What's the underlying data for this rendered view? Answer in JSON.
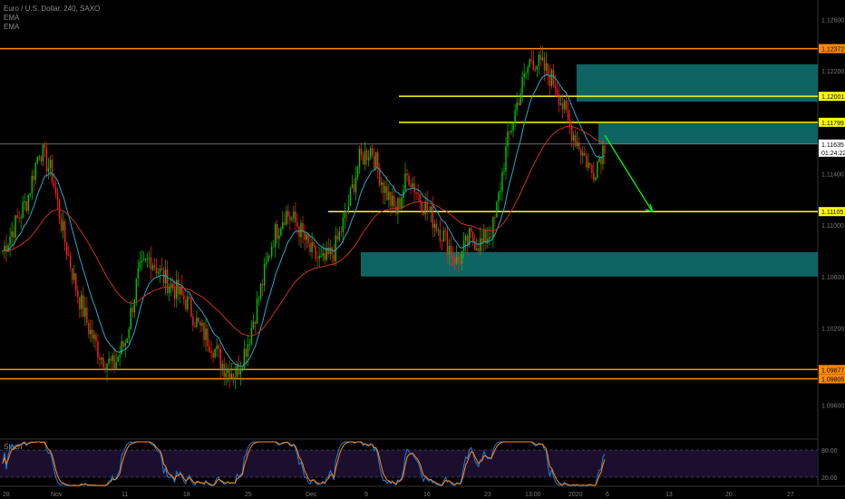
{
  "header": {
    "symbol_line": "Euro / U.S. Dollar, 240, SAXO",
    "indicator_1": "EMA",
    "indicator_2": "EMA"
  },
  "chart_data": {
    "type": "candlestick",
    "symbol": "Euro / U.S. Dollar",
    "interval": "240",
    "source": "SAXO",
    "y_range": [
      1.0935,
      1.1275
    ],
    "price_ticks": [
      "1.12600",
      "1.12200",
      "1.11800",
      "1.11400",
      "1.11000",
      "1.10600",
      "1.10200",
      "1.09800",
      "1.09600"
    ],
    "x_ticks": [
      "28",
      "Nov",
      "11",
      "18",
      "25",
      "Dec",
      "9",
      "16",
      "23",
      "13:00",
      "2020",
      "6",
      "13",
      "20",
      "27"
    ],
    "horizontal_levels": [
      {
        "price": 1.12372,
        "label": "1.12372",
        "color": "#ff8a00"
      },
      {
        "price": 1.12001,
        "label": "1.12001",
        "color": "#ffff00"
      },
      {
        "price": 1.11799,
        "label": "1.11799",
        "color": "#ffff00"
      },
      {
        "price": 1.11105,
        "label": "1.11105",
        "color": "#ffff00"
      },
      {
        "price": 1.09877,
        "label": "1.09877",
        "color": "#ff8a00"
      },
      {
        "price": 1.09805,
        "label": "1.09805",
        "color": "#ff8a00"
      }
    ],
    "current_price": {
      "label": "1.11635",
      "countdown": "01:24:22",
      "price": 1.1163
    },
    "zones": [
      {
        "name": "supply-zone-upper",
        "from_price": 1.1196,
        "to_price": 1.1225,
        "color": "#0f6e6e"
      },
      {
        "name": "supply-zone-middle",
        "from_price": 1.1163,
        "to_price": 1.1179,
        "color": "#0f6e6e"
      },
      {
        "name": "demand-zone",
        "from_price": 1.106,
        "to_price": 1.1079,
        "color": "#0f6e6e"
      }
    ],
    "projection_arrow": {
      "from_price": 1.117,
      "to_price": 1.111,
      "color": "#00ff00"
    },
    "stoch": {
      "label": "Stoch",
      "levels": [
        "80.00",
        "20.00"
      ],
      "scale": [
        0,
        100
      ]
    },
    "colors": {
      "up_candle": "#00c800",
      "down_candle": "#ff2020",
      "ema_fast": "#2aa6c8",
      "ema_slow": "#c8321e",
      "stoch_k": "#1f7fd0",
      "stoch_d": "#ff8a20",
      "background": "#000000",
      "price_label_text": "#000000"
    },
    "key_closes": [
      1.108,
      1.11,
      1.112,
      1.116,
      1.114,
      1.109,
      1.105,
      1.102,
      1.0998,
      1.099,
      1.101,
      1.106,
      1.1075,
      1.106,
      1.105,
      1.104,
      1.102,
      1.1008,
      1.099,
      1.0985,
      1.101,
      1.105,
      1.109,
      1.111,
      1.11,
      1.108,
      1.107,
      1.108,
      1.111,
      1.115,
      1.116,
      1.113,
      1.111,
      1.114,
      1.112,
      1.1105,
      1.109,
      1.107,
      1.109,
      1.1085,
      1.11,
      1.116,
      1.12,
      1.123,
      1.1222,
      1.121,
      1.118,
      1.116,
      1.114,
      1.1163
    ]
  }
}
